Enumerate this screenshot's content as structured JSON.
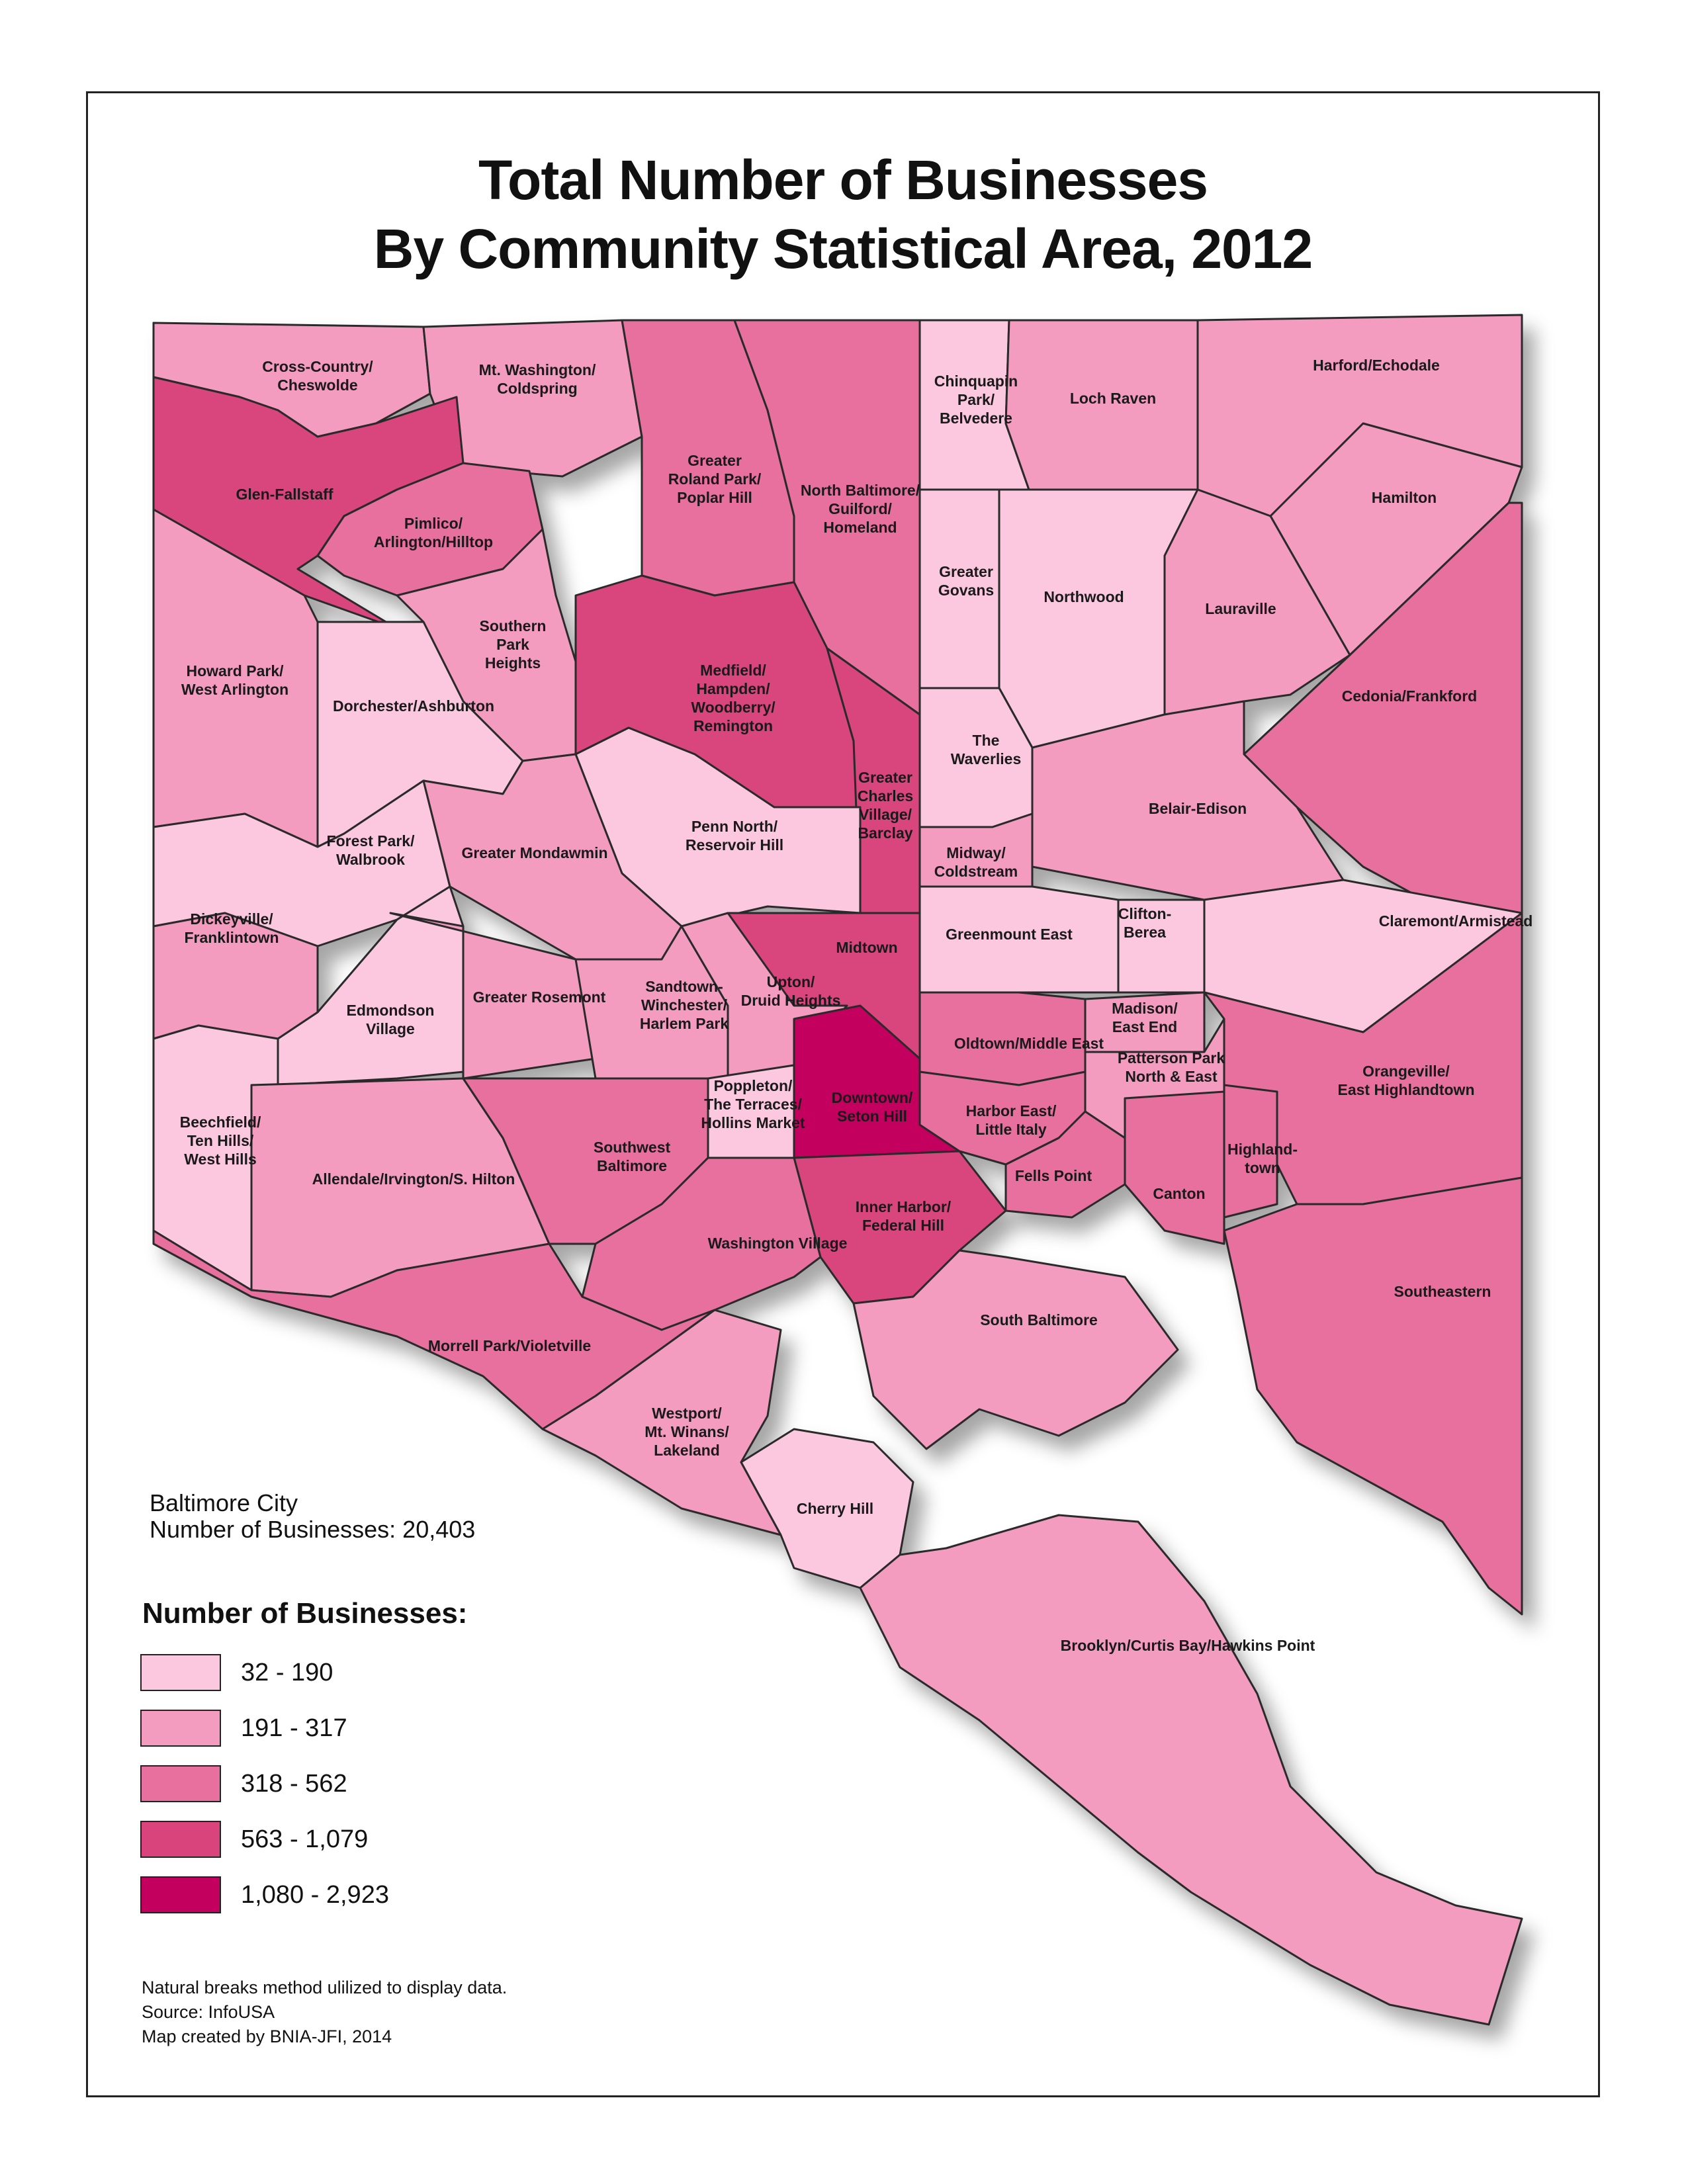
{
  "title": [
    "Total Number of Businesses",
    "By Community Statistical Area, 2012"
  ],
  "city_summary": {
    "line1": "Baltimore City",
    "line2": "Number of Businesses: 20,403"
  },
  "legend": {
    "title": "Number of Businesses:",
    "classes": [
      {
        "label": "32 - 190",
        "color": "#fcc8e0"
      },
      {
        "label": "191 - 317",
        "color": "#f39cc0"
      },
      {
        "label": "318 - 562",
        "color": "#e8709e"
      },
      {
        "label": "563 - 1,079",
        "color": "#d9447d"
      },
      {
        "label": "1,080 - 2,923",
        "color": "#c4005f"
      }
    ]
  },
  "notes": [
    "Natural breaks method ulilized to display data.",
    "Source: InfoUSA",
    "Map created by BNIA-JFI, 2014"
  ],
  "areas": [
    {
      "name": "Cross-Country/\nCheswolde",
      "class": 1
    },
    {
      "name": "Mt. Washington/\nColdspring",
      "class": 1
    },
    {
      "name": "Glen-Fallstaff",
      "class": 3
    },
    {
      "name": "Pimlico/\nArlington/Hilltop",
      "class": 2
    },
    {
      "name": "Greater\nRoland Park/\nPoplar Hill",
      "class": 2
    },
    {
      "name": "North Baltimore/\nGuilford/\nHomeland",
      "class": 2
    },
    {
      "name": "Chinquapin\nPark/\nBelvedere",
      "class": 0
    },
    {
      "name": "Loch Raven",
      "class": 1
    },
    {
      "name": "Harford/Echodale",
      "class": 1
    },
    {
      "name": "Hamilton",
      "class": 1
    },
    {
      "name": "Greater\nGovans",
      "class": 0
    },
    {
      "name": "Northwood",
      "class": 0
    },
    {
      "name": "Lauraville",
      "class": 1
    },
    {
      "name": "Howard Park/\nWest Arlington",
      "class": 1
    },
    {
      "name": "Southern\nPark\nHeights",
      "class": 1
    },
    {
      "name": "Dorchester/Ashburton",
      "class": 0
    },
    {
      "name": "Medfield/\nHampden/\nWoodberry/\nRemington",
      "class": 3
    },
    {
      "name": "Cedonia/Frankford",
      "class": 2
    },
    {
      "name": "The\nWaverlies",
      "class": 0
    },
    {
      "name": "Greater\nCharles\nVillage/\nBarclay",
      "class": 3
    },
    {
      "name": "Belair-Edison",
      "class": 1
    },
    {
      "name": "Forest Park/\nWalbrook",
      "class": 0
    },
    {
      "name": "Penn North/\nReservoir Hill",
      "class": 0
    },
    {
      "name": "Greater Mondawmin",
      "class": 1
    },
    {
      "name": "Midway/\nColdstream",
      "class": 1
    },
    {
      "name": "Dickeyville/\nFranklintown",
      "class": 1
    },
    {
      "name": "Clifton-\nBerea",
      "class": 0
    },
    {
      "name": "Claremont/Armistead",
      "class": 0
    },
    {
      "name": "Greenmount East",
      "class": 0
    },
    {
      "name": "Midtown",
      "class": 3
    },
    {
      "name": "Edmondson\nVillage",
      "class": 0
    },
    {
      "name": "Greater Rosemont",
      "class": 1
    },
    {
      "name": "Sandtown-\nWinchester/\nHarlem Park",
      "class": 1
    },
    {
      "name": "Upton/\nDruid Heights",
      "class": 1
    },
    {
      "name": "Madison/\nEast End",
      "class": 1
    },
    {
      "name": "Oldtown/Middle East",
      "class": 2
    },
    {
      "name": "Patterson Park\nNorth & East",
      "class": 1
    },
    {
      "name": "Orangeville/\nEast Highlandtown",
      "class": 2
    },
    {
      "name": "Beechfield/\nTen Hills/\nWest Hills",
      "class": 0
    },
    {
      "name": "Poppleton/\nThe Terraces/\nHollins Market",
      "class": 0
    },
    {
      "name": "Downtown/\nSeton Hill",
      "class": 4
    },
    {
      "name": "Harbor East/\nLittle Italy",
      "class": 2
    },
    {
      "name": "Allendale/Irvington/S. Hilton",
      "class": 1
    },
    {
      "name": "Southwest\nBaltimore",
      "class": 2
    },
    {
      "name": "Fells Point",
      "class": 2
    },
    {
      "name": "Highland-\ntown",
      "class": 2
    },
    {
      "name": "Canton",
      "class": 2
    },
    {
      "name": "Inner Harbor/\nFederal Hill",
      "class": 3
    },
    {
      "name": "Washington Village",
      "class": 2
    },
    {
      "name": "Southeastern",
      "class": 2
    },
    {
      "name": "South Baltimore",
      "class": 1
    },
    {
      "name": "Morrell Park/Violetville",
      "class": 2
    },
    {
      "name": "Westport/\nMt. Winans/\nLakeland",
      "class": 1
    },
    {
      "name": "Cherry Hill",
      "class": 0
    },
    {
      "name": "Brooklyn/Curtis Bay/Hawkins Point",
      "class": 1
    }
  ]
}
